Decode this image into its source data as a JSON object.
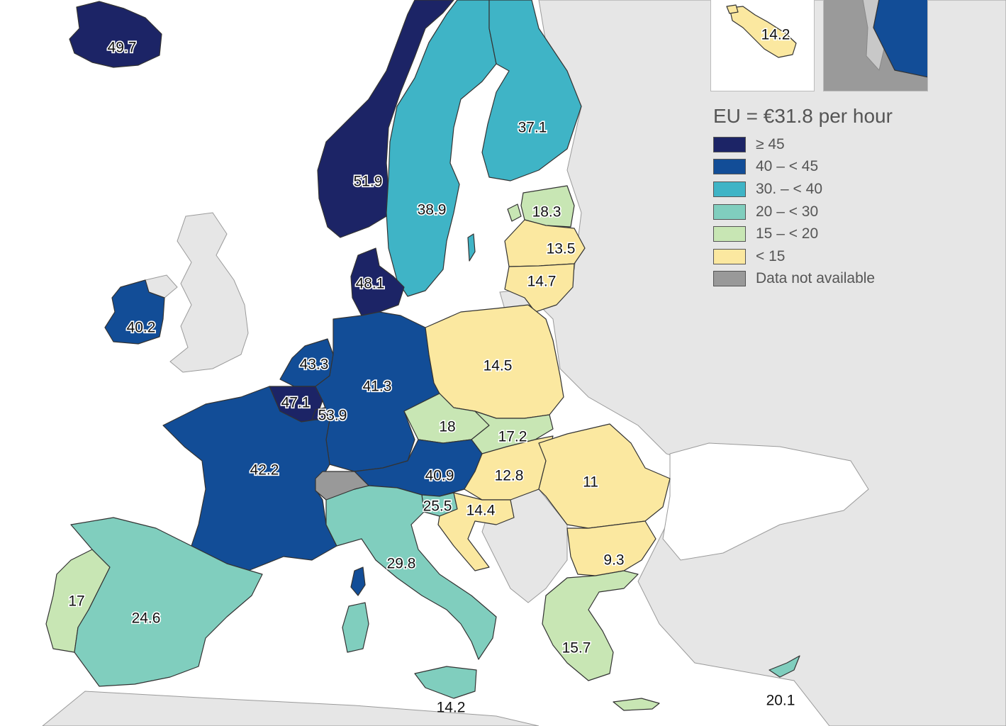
{
  "legend": {
    "title": "EU = €31.8 per hour",
    "classes": [
      {
        "label": "≥ 45",
        "color": "#1c2466"
      },
      {
        "label": "40 – < 45",
        "color": "#124d97"
      },
      {
        "label": "30. – < 40",
        "color": "#3fb4c6"
      },
      {
        "label": "20 – < 30",
        "color": "#80cebe"
      },
      {
        "label": "15 – < 20",
        "color": "#c8e6b4"
      },
      {
        "label": "< 15",
        "color": "#fbe8a0"
      },
      {
        "label": "Data not available",
        "color": "#999999"
      }
    ]
  },
  "colors": {
    "background_land": "#e6e6e6",
    "sea": "#ffffff",
    "border": "#333333"
  },
  "countries": [
    {
      "name": "iceland",
      "value": "49.7",
      "class": 0
    },
    {
      "name": "norway",
      "value": "51.9",
      "class": 0
    },
    {
      "name": "sweden",
      "value": "38.9",
      "class": 2
    },
    {
      "name": "finland",
      "value": "37.1",
      "class": 2
    },
    {
      "name": "estonia",
      "value": "18.3",
      "class": 4
    },
    {
      "name": "latvia",
      "value": "13.5",
      "class": 5
    },
    {
      "name": "lithuania",
      "value": "14.7",
      "class": 5
    },
    {
      "name": "denmark",
      "value": "48.1",
      "class": 0
    },
    {
      "name": "ireland",
      "value": "40.2",
      "class": 1
    },
    {
      "name": "netherlands",
      "value": "43.3",
      "class": 1
    },
    {
      "name": "belgium",
      "value": "47.1",
      "class": 0
    },
    {
      "name": "luxembourg",
      "value": "53.9",
      "class": 0
    },
    {
      "name": "germany",
      "value": "41.3",
      "class": 1
    },
    {
      "name": "poland",
      "value": "14.5",
      "class": 5
    },
    {
      "name": "czechia",
      "value": "18",
      "class": 4
    },
    {
      "name": "slovakia",
      "value": "17.2",
      "class": 4
    },
    {
      "name": "france",
      "value": "42.2",
      "class": 1
    },
    {
      "name": "austria",
      "value": "40.9",
      "class": 1
    },
    {
      "name": "hungary",
      "value": "12.8",
      "class": 5
    },
    {
      "name": "romania",
      "value": "11",
      "class": 5
    },
    {
      "name": "slovenia",
      "value": "25.5",
      "class": 3
    },
    {
      "name": "croatia",
      "value": "14.4",
      "class": 5
    },
    {
      "name": "italy",
      "value": "29.8",
      "class": 3
    },
    {
      "name": "bulgaria",
      "value": "9.3",
      "class": 5
    },
    {
      "name": "portugal",
      "value": "17",
      "class": 4
    },
    {
      "name": "spain",
      "value": "24.6",
      "class": 3
    },
    {
      "name": "greece",
      "value": "15.7",
      "class": 4
    },
    {
      "name": "cyprus",
      "value": "20.1",
      "class": 3
    },
    {
      "name": "malta",
      "value": "14.2",
      "class": 5
    },
    {
      "name": "malta-inset",
      "value": "14.2",
      "class": 5
    },
    {
      "name": "switzerland",
      "value": "",
      "class": 6
    }
  ]
}
